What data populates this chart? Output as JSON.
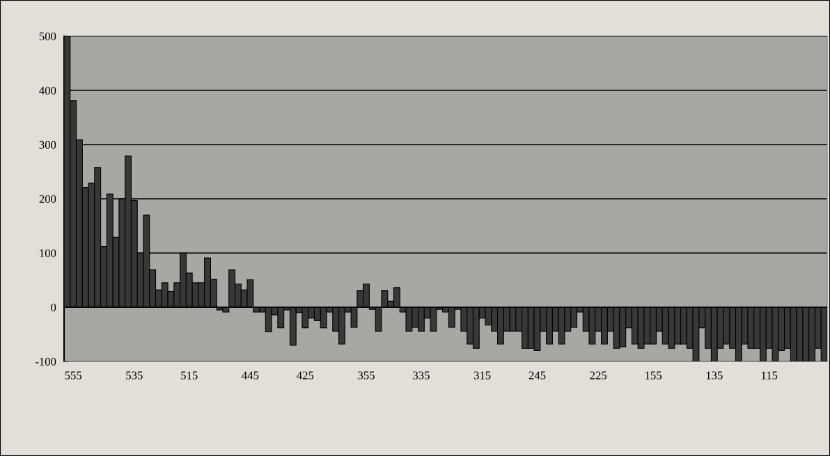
{
  "chart_data": {
    "type": "bar",
    "color": "#383838",
    "categories": [
      null,
      "555",
      null,
      null,
      null,
      null,
      null,
      null,
      null,
      null,
      null,
      "535",
      null,
      null,
      null,
      null,
      null,
      null,
      null,
      null,
      "515",
      null,
      null,
      null,
      null,
      null,
      null,
      null,
      null,
      null,
      "445",
      null,
      null,
      null,
      null,
      null,
      null,
      null,
      null,
      "425",
      null,
      null,
      null,
      null,
      null,
      null,
      null,
      null,
      null,
      "355",
      null,
      null,
      null,
      null,
      null,
      null,
      null,
      null,
      "335",
      null,
      null,
      null,
      null,
      null,
      null,
      null,
      null,
      null,
      "315",
      null,
      null,
      null,
      null,
      null,
      null,
      null,
      null,
      "245",
      null,
      null,
      null,
      null,
      null,
      null,
      null,
      null,
      null,
      "225",
      null,
      null,
      null,
      null,
      null,
      null,
      null,
      null,
      "155",
      null,
      null,
      null,
      null,
      null,
      null,
      null,
      null,
      null,
      "135",
      null,
      null,
      null,
      null,
      null,
      null,
      null,
      null,
      "115",
      null,
      null,
      null,
      null,
      null,
      null,
      null,
      null,
      null
    ],
    "values": [
      500,
      381,
      309,
      221,
      229,
      258,
      112,
      209,
      129,
      200,
      279,
      197,
      100,
      170,
      69,
      32,
      45,
      29,
      45,
      100,
      63,
      45,
      45,
      91,
      52,
      -5,
      -9,
      69,
      43,
      32,
      51,
      -9,
      -9,
      -45,
      -14,
      -38,
      -5,
      -70,
      -10,
      -38,
      -20,
      -25,
      -38,
      -9,
      -44,
      -68,
      -9,
      -37,
      31,
      43,
      -4,
      -44,
      31,
      11,
      36,
      -9,
      -44,
      -37,
      -44,
      -20,
      -44,
      -4,
      -9,
      -37,
      -4,
      -44,
      -68,
      -76,
      -20,
      -33,
      -44,
      -68,
      -44,
      -44,
      -44,
      -76,
      -76,
      -80,
      -44,
      -68,
      -44,
      -68,
      -44,
      -37,
      -9,
      -44,
      -68,
      -44,
      -68,
      -44,
      -76,
      -73,
      -38,
      -68,
      -76,
      -68,
      -68,
      -44,
      -68,
      -76,
      -68,
      -68,
      -76,
      -100,
      -38,
      -76,
      -100,
      -76,
      -68,
      -76,
      -100,
      -68,
      -76,
      -76,
      -100,
      -76,
      -100,
      -80,
      -76,
      -100,
      -100,
      -100,
      -100,
      -76,
      -100
    ],
    "ylim": [
      -100,
      500
    ],
    "yticks": [
      -100,
      0,
      100,
      200,
      300,
      400,
      500
    ],
    "grid": "y",
    "legend": false
  }
}
